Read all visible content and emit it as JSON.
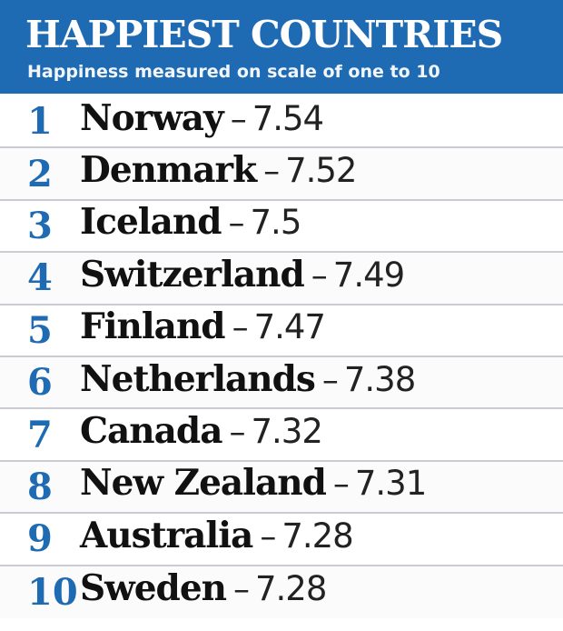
{
  "chart_data": {
    "type": "table",
    "title": "HAPPIEST COUNTRIES",
    "subtitle": "Happiness measured on scale of one to 10",
    "separator": "–",
    "rows": [
      {
        "rank": "1",
        "country": "Norway",
        "score": "7.54"
      },
      {
        "rank": "2",
        "country": "Denmark",
        "score": "7.52"
      },
      {
        "rank": "3",
        "country": "Iceland",
        "score": "7.5"
      },
      {
        "rank": "4",
        "country": "Switzerland",
        "score": "7.49"
      },
      {
        "rank": "5",
        "country": "Finland",
        "score": "7.47"
      },
      {
        "rank": "6",
        "country": "Netherlands",
        "score": "7.38"
      },
      {
        "rank": "7",
        "country": "Canada",
        "score": "7.32"
      },
      {
        "rank": "8",
        "country": "New Zealand",
        "score": "7.31"
      },
      {
        "rank": "9",
        "country": "Australia",
        "score": "7.28"
      },
      {
        "rank": "10",
        "country": "Sweden",
        "score": "7.28"
      }
    ]
  },
  "colors": {
    "header_bg": "#1f6bb3",
    "rank_text": "#1f6bb3",
    "country_text": "#111111",
    "row_divider": "#c9ccd1"
  }
}
